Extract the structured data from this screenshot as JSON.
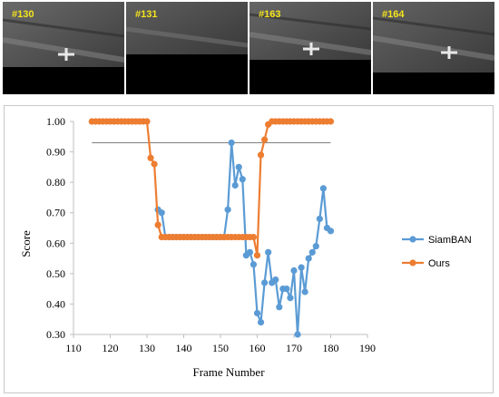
{
  "frames": [
    {
      "label": "#130"
    },
    {
      "label": "#131"
    },
    {
      "label": "#163"
    },
    {
      "label": "#164"
    }
  ],
  "colors": {
    "siamban": "#5b9bd5",
    "ours": "#ed7d31",
    "threshold": "#808080",
    "frame_label": "#f5e51b"
  },
  "chart_data": {
    "type": "line",
    "xlabel": "Frame Number",
    "ylabel": "Score",
    "xlim": [
      110,
      190
    ],
    "ylim": [
      0.3,
      1.0
    ],
    "x_ticks": [
      "110",
      "120",
      "130",
      "140",
      "150",
      "160",
      "170",
      "180",
      "190"
    ],
    "y_ticks": [
      "0.30",
      "0.40",
      "0.50",
      "0.60",
      "0.70",
      "0.80",
      "0.90",
      "1.00"
    ],
    "reference_line": {
      "y": 0.93,
      "x_start": 115,
      "x_end": 180
    },
    "legend_position": "right",
    "series": [
      {
        "name": "SiamBAN",
        "points": [
          [
            133,
            0.71
          ],
          [
            134,
            0.7
          ],
          [
            135,
            0.62
          ],
          [
            136,
            0.62
          ],
          [
            137,
            0.62
          ],
          [
            138,
            0.62
          ],
          [
            139,
            0.62
          ],
          [
            140,
            0.62
          ],
          [
            141,
            0.62
          ],
          [
            142,
            0.62
          ],
          [
            143,
            0.62
          ],
          [
            144,
            0.62
          ],
          [
            145,
            0.62
          ],
          [
            146,
            0.62
          ],
          [
            147,
            0.62
          ],
          [
            148,
            0.62
          ],
          [
            149,
            0.62
          ],
          [
            150,
            0.62
          ],
          [
            151,
            0.62
          ],
          [
            152,
            0.71
          ],
          [
            153,
            0.93
          ],
          [
            154,
            0.79
          ],
          [
            155,
            0.85
          ],
          [
            156,
            0.81
          ],
          [
            157,
            0.56
          ],
          [
            158,
            0.57
          ],
          [
            159,
            0.53
          ],
          [
            160,
            0.37
          ],
          [
            161,
            0.34
          ],
          [
            162,
            0.47
          ],
          [
            163,
            0.57
          ],
          [
            164,
            0.47
          ],
          [
            165,
            0.48
          ],
          [
            166,
            0.39
          ],
          [
            167,
            0.45
          ],
          [
            168,
            0.45
          ],
          [
            169,
            0.42
          ],
          [
            170,
            0.51
          ],
          [
            171,
            0.3
          ],
          [
            172,
            0.52
          ],
          [
            173,
            0.44
          ],
          [
            174,
            0.55
          ],
          [
            175,
            0.57
          ],
          [
            176,
            0.59
          ],
          [
            177,
            0.68
          ],
          [
            178,
            0.78
          ],
          [
            179,
            0.65
          ],
          [
            180,
            0.64
          ]
        ]
      },
      {
        "name": "Ours",
        "points": [
          [
            115,
            1.0
          ],
          [
            116,
            1.0
          ],
          [
            117,
            1.0
          ],
          [
            118,
            1.0
          ],
          [
            119,
            1.0
          ],
          [
            120,
            1.0
          ],
          [
            121,
            1.0
          ],
          [
            122,
            1.0
          ],
          [
            123,
            1.0
          ],
          [
            124,
            1.0
          ],
          [
            125,
            1.0
          ],
          [
            126,
            1.0
          ],
          [
            127,
            1.0
          ],
          [
            128,
            1.0
          ],
          [
            129,
            1.0
          ],
          [
            130,
            1.0
          ],
          [
            131,
            0.88
          ],
          [
            132,
            0.86
          ],
          [
            133,
            0.66
          ],
          [
            134,
            0.62
          ],
          [
            135,
            0.62
          ],
          [
            136,
            0.62
          ],
          [
            137,
            0.62
          ],
          [
            138,
            0.62
          ],
          [
            139,
            0.62
          ],
          [
            140,
            0.62
          ],
          [
            141,
            0.62
          ],
          [
            142,
            0.62
          ],
          [
            143,
            0.62
          ],
          [
            144,
            0.62
          ],
          [
            145,
            0.62
          ],
          [
            146,
            0.62
          ],
          [
            147,
            0.62
          ],
          [
            148,
            0.62
          ],
          [
            149,
            0.62
          ],
          [
            150,
            0.62
          ],
          [
            151,
            0.62
          ],
          [
            152,
            0.62
          ],
          [
            153,
            0.62
          ],
          [
            154,
            0.62
          ],
          [
            155,
            0.62
          ],
          [
            156,
            0.62
          ],
          [
            157,
            0.62
          ],
          [
            158,
            0.62
          ],
          [
            159,
            0.62
          ],
          [
            160,
            0.56
          ],
          [
            161,
            0.89
          ],
          [
            162,
            0.94
          ],
          [
            163,
            0.99
          ],
          [
            164,
            1.0
          ],
          [
            165,
            1.0
          ],
          [
            166,
            1.0
          ],
          [
            167,
            1.0
          ],
          [
            168,
            1.0
          ],
          [
            169,
            1.0
          ],
          [
            170,
            1.0
          ],
          [
            171,
            1.0
          ],
          [
            172,
            1.0
          ],
          [
            173,
            1.0
          ],
          [
            174,
            1.0
          ],
          [
            175,
            1.0
          ],
          [
            176,
            1.0
          ],
          [
            177,
            1.0
          ],
          [
            178,
            1.0
          ],
          [
            179,
            1.0
          ],
          [
            180,
            1.0
          ]
        ]
      }
    ]
  }
}
